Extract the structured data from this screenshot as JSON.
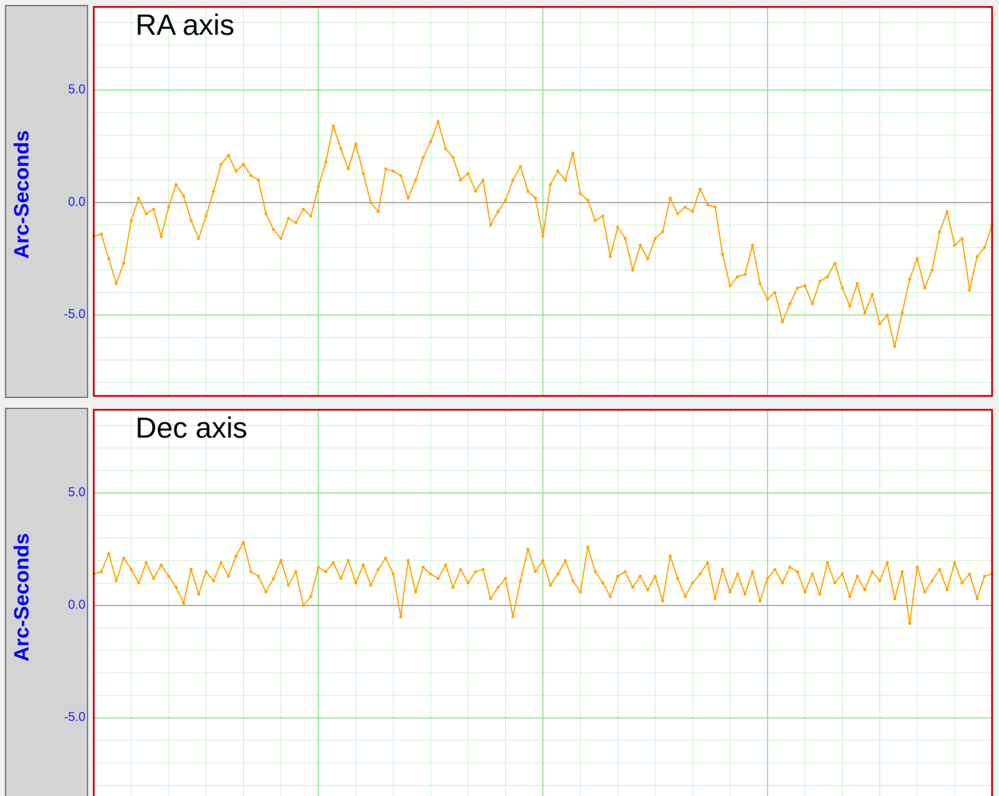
{
  "chart_data": [
    {
      "type": "line",
      "title": "RA axis",
      "y_label": "Arc-Seconds",
      "color": "#ffa500",
      "xlim": [
        0,
        120
      ],
      "x_grid_major": [
        30,
        60,
        90
      ],
      "x_grid_minor": [
        0,
        5,
        10,
        15,
        20,
        25,
        35,
        40,
        45,
        50,
        55,
        65,
        70,
        75,
        80,
        85,
        95,
        100,
        105,
        110,
        115
      ],
      "ylim": [
        -8.6,
        8.7
      ],
      "yticks": [
        {
          "value": -5,
          "label": "-5.0"
        },
        {
          "value": 0,
          "label": "0.0"
        },
        {
          "value": 5,
          "label": "5.0"
        }
      ],
      "minor_yticks": [
        -8,
        -7,
        -6,
        -4,
        -3,
        -2,
        -1,
        1,
        2,
        3,
        4,
        6,
        7,
        8
      ],
      "values": [
        -1.5,
        -1.4,
        -2.5,
        -3.6,
        -2.7,
        -0.8,
        0.2,
        -0.5,
        -0.3,
        -1.5,
        -0.2,
        0.8,
        0.3,
        -0.8,
        -1.6,
        -0.6,
        0.5,
        1.7,
        2.1,
        1.4,
        1.7,
        1.2,
        1.0,
        -0.5,
        -1.2,
        -1.6,
        -0.7,
        -0.9,
        -0.3,
        -0.6,
        0.7,
        1.8,
        3.4,
        2.4,
        1.5,
        2.6,
        1.3,
        0.0,
        -0.4,
        1.5,
        1.4,
        1.2,
        0.2,
        1.0,
        2.0,
        2.7,
        3.6,
        2.4,
        2.0,
        1.0,
        1.3,
        0.5,
        1.0,
        -1.0,
        -0.4,
        0.1,
        1.0,
        1.6,
        0.5,
        0.2,
        -1.5,
        0.8,
        1.4,
        1.0,
        2.2,
        0.4,
        0.1,
        -0.8,
        -0.6,
        -2.4,
        -1.1,
        -1.6,
        -3.0,
        -1.9,
        -2.5,
        -1.6,
        -1.3,
        0.2,
        -0.5,
        -0.2,
        -0.4,
        0.6,
        -0.1,
        -0.2,
        -2.3,
        -3.7,
        -3.3,
        -3.2,
        -1.9,
        -3.6,
        -4.3,
        -4.0,
        -5.3,
        -4.5,
        -3.8,
        -3.7,
        -4.5,
        -3.5,
        -3.3,
        -2.7,
        -3.8,
        -4.6,
        -3.6,
        -4.9,
        -4.1,
        -5.4,
        -5.0,
        -6.4,
        -4.9,
        -3.4,
        -2.5,
        -3.8,
        -3.0,
        -1.3,
        -0.4,
        -1.9,
        -1.6,
        -3.9,
        -2.4,
        -2.0,
        -1.0
      ]
    },
    {
      "type": "line",
      "title": "Dec axis",
      "y_label": "Arc-Seconds",
      "color": "#ffa500",
      "xlim": [
        0,
        120
      ],
      "x_grid_major": [
        30,
        60,
        90
      ],
      "x_grid_minor": [
        0,
        5,
        10,
        15,
        20,
        25,
        35,
        40,
        45,
        50,
        55,
        65,
        70,
        75,
        80,
        85,
        95,
        100,
        105,
        110,
        115
      ],
      "ylim": [
        -8.6,
        8.7
      ],
      "yticks": [
        {
          "value": -5,
          "label": "-5.0"
        },
        {
          "value": 0,
          "label": "0.0"
        },
        {
          "value": 5,
          "label": "5.0"
        }
      ],
      "minor_yticks": [
        -8,
        -7,
        -6,
        -4,
        -3,
        -2,
        -1,
        1,
        2,
        3,
        4,
        6,
        7,
        8
      ],
      "values": [
        1.4,
        1.5,
        2.3,
        1.1,
        2.1,
        1.6,
        1.0,
        1.9,
        1.2,
        1.8,
        1.3,
        0.8,
        0.1,
        1.6,
        0.5,
        1.5,
        1.1,
        1.9,
        1.3,
        2.2,
        2.8,
        1.5,
        1.3,
        0.6,
        1.2,
        2.0,
        0.9,
        1.5,
        0.0,
        0.4,
        1.7,
        1.5,
        1.9,
        1.2,
        2.0,
        1.0,
        1.8,
        0.9,
        1.6,
        2.1,
        1.4,
        -0.5,
        2.0,
        0.6,
        1.7,
        1.4,
        1.2,
        1.8,
        0.8,
        1.6,
        1.0,
        1.5,
        1.6,
        0.3,
        0.8,
        1.2,
        -0.5,
        1.1,
        2.5,
        1.5,
        2.0,
        0.9,
        1.4,
        2.0,
        1.1,
        0.6,
        2.6,
        1.5,
        1.0,
        0.4,
        1.3,
        1.5,
        0.8,
        1.3,
        0.7,
        1.3,
        0.2,
        2.2,
        1.2,
        0.4,
        1.0,
        1.4,
        1.9,
        0.3,
        1.6,
        0.6,
        1.4,
        0.5,
        1.5,
        0.2,
        1.2,
        1.6,
        1.0,
        1.7,
        1.5,
        0.6,
        1.4,
        0.5,
        1.9,
        1.0,
        1.4,
        0.4,
        1.3,
        0.7,
        1.5,
        1.1,
        1.9,
        0.3,
        1.5,
        -0.8,
        1.7,
        0.6,
        1.1,
        1.6,
        0.7,
        1.9,
        1.0,
        1.4,
        0.3,
        1.3,
        1.4
      ]
    }
  ]
}
